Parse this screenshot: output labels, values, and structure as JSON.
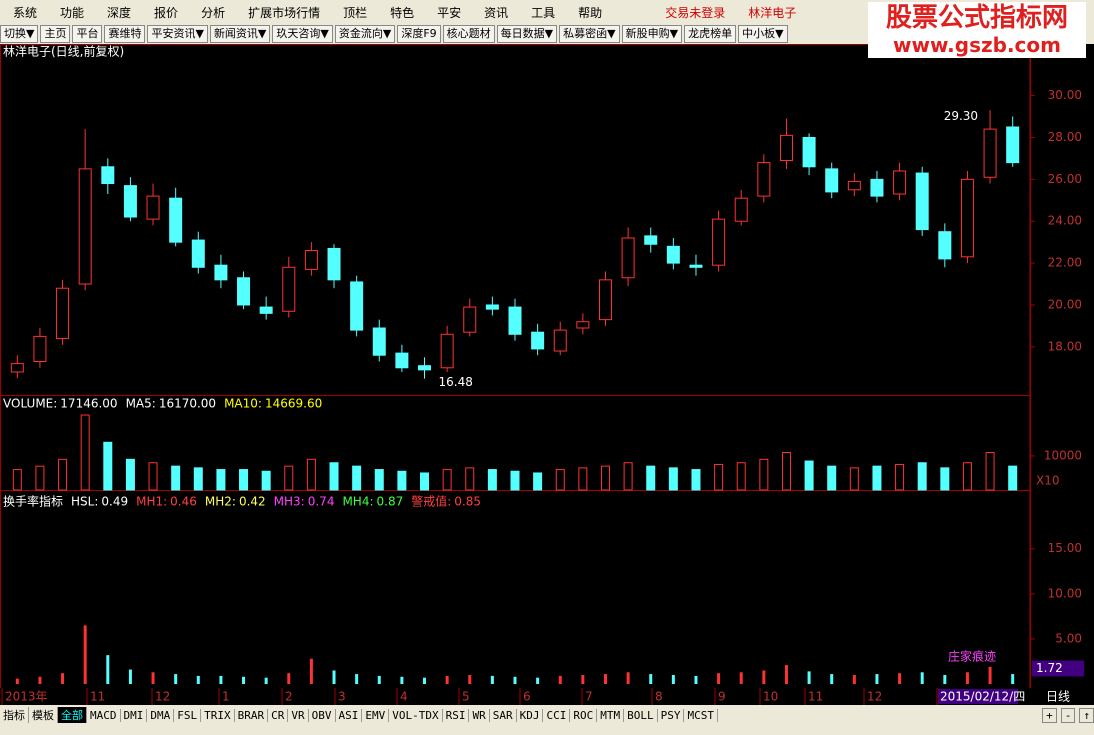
{
  "menu": [
    "系统",
    "功能",
    "深度",
    "报价",
    "分析",
    "扩展市场行情",
    "顶栏",
    "特色",
    "平安",
    "资讯",
    "工具",
    "帮助"
  ],
  "status": [
    "交易未登录",
    "林洋电子"
  ],
  "watermark": {
    "title": "股票公式指标网",
    "url": "www.gszb.com"
  },
  "toolbar": [
    "切换▼",
    "主页",
    "平台",
    "赛维特",
    "平安资讯▼",
    "新闻资讯▼",
    "玖天咨询▼",
    "资金流向▼",
    "深度F9",
    "核心题材",
    "每日数据▼",
    "私募密函▼",
    "新股申购▼",
    "龙虎榜单",
    "中小板▼"
  ],
  "chart_data": {
    "type": "candlestick",
    "title": "林洋电子(日线,前复权)",
    "ylim": [
      15.7,
      31.7
    ],
    "yticks": [
      {
        "value": 18,
        "label": "18.00"
      },
      {
        "value": 20,
        "label": "20.00"
      },
      {
        "value": 22,
        "label": "22.00"
      },
      {
        "value": 24,
        "label": "24.00"
      },
      {
        "value": 26,
        "label": "26.00"
      },
      {
        "value": 28,
        "label": "28.00"
      },
      {
        "value": 30,
        "label": "30.00"
      }
    ],
    "open": [
      16.8,
      17.3,
      18.4,
      21.0,
      26.6,
      25.7,
      24.1,
      25.1,
      23.1,
      21.9,
      21.3,
      19.9,
      19.7,
      21.7,
      22.7,
      21.1,
      18.9,
      17.7,
      17.1,
      17.0,
      18.7,
      20.0,
      19.9,
      18.7,
      17.8,
      18.9,
      19.3,
      21.3,
      23.3,
      22.8,
      21.9,
      21.9,
      24.0,
      25.2,
      26.9,
      28.0,
      26.5,
      25.5,
      26.0,
      25.3,
      26.3,
      23.5,
      22.3,
      26.1,
      28.5
    ],
    "close": [
      17.2,
      18.5,
      20.8,
      26.5,
      25.8,
      24.2,
      25.2,
      23.0,
      21.8,
      21.2,
      20.0,
      19.6,
      21.8,
      22.6,
      21.2,
      18.8,
      17.6,
      17.0,
      16.9,
      18.6,
      19.9,
      19.8,
      18.6,
      17.9,
      18.8,
      19.2,
      21.2,
      23.2,
      22.9,
      22.0,
      21.8,
      24.1,
      25.1,
      26.8,
      28.1,
      26.6,
      25.4,
      25.9,
      25.2,
      26.4,
      23.6,
      22.2,
      26.0,
      28.4,
      26.8
    ],
    "high": [
      17.6,
      18.9,
      21.2,
      28.4,
      27.0,
      26.1,
      25.8,
      25.6,
      23.5,
      22.4,
      21.6,
      20.4,
      22.3,
      23.0,
      22.9,
      21.4,
      19.3,
      18.1,
      17.5,
      19.0,
      20.3,
      20.4,
      20.3,
      19.1,
      19.2,
      19.6,
      21.6,
      23.7,
      23.7,
      23.2,
      22.4,
      24.5,
      25.5,
      27.2,
      28.9,
      28.2,
      26.8,
      26.3,
      26.4,
      26.8,
      26.6,
      23.9,
      26.4,
      29.3,
      29.0
    ],
    "low": [
      16.5,
      17.0,
      18.1,
      20.7,
      25.3,
      24.0,
      23.8,
      22.8,
      21.5,
      20.8,
      19.8,
      19.3,
      19.4,
      21.4,
      20.8,
      18.5,
      17.3,
      16.8,
      16.48,
      16.8,
      18.5,
      19.5,
      18.3,
      17.6,
      17.6,
      18.6,
      19.0,
      20.9,
      22.5,
      21.7,
      21.4,
      21.6,
      23.8,
      24.9,
      26.5,
      26.2,
      25.1,
      25.2,
      24.9,
      25.0,
      23.3,
      21.8,
      22.0,
      25.8,
      26.6
    ],
    "up_color": "#ff3232",
    "down_color": "#54ffff",
    "max_label": {
      "value": 29.3,
      "label": "29.30"
    },
    "min_label": {
      "value": 16.48,
      "label": "16.48"
    },
    "volume": {
      "legend": [
        {
          "name": "VOLUME:",
          "text": "17146.00",
          "color": "#ffffff"
        },
        {
          "name": "MA5:",
          "text": "16170.00",
          "color": "#ffffff"
        },
        {
          "name": "MA10:",
          "text": "14669.60",
          "color": "#ffff00"
        }
      ],
      "ylim": [
        0,
        27000
      ],
      "yticks": [
        10000
      ],
      "unit": "X10",
      "values": [
        6000,
        7000,
        9000,
        22000,
        14000,
        9000,
        8000,
        7000,
        6500,
        6000,
        6000,
        5500,
        7000,
        9000,
        8000,
        7000,
        6000,
        5500,
        5000,
        6000,
        6500,
        6000,
        5500,
        5000,
        6000,
        6500,
        7000,
        8000,
        7000,
        6500,
        6000,
        7500,
        8000,
        9000,
        11000,
        8500,
        7000,
        6500,
        7000,
        7500,
        8000,
        6500,
        8000,
        11000,
        7000
      ]
    },
    "hsl": {
      "legend": [
        {
          "name": "换手率指标",
          "text": "",
          "color": "#ffffff"
        },
        {
          "name": "HSL:",
          "text": "0.49",
          "color": "#ffffff"
        },
        {
          "name": "MH1:",
          "text": "0.46",
          "color": "#ff4040"
        },
        {
          "name": "MH2:",
          "text": "0.42",
          "color": "#ffff60"
        },
        {
          "name": "MH3:",
          "text": "0.74",
          "color": "#ff40ff"
        },
        {
          "name": "MH4:",
          "text": "0.87",
          "color": "#40ff40"
        },
        {
          "name": "警戒值:",
          "text": "0.85",
          "color": "#ff4040"
        }
      ],
      "ylim": [
        0,
        20.4
      ],
      "yticks": [
        {
          "value": 5,
          "label": "5.00"
        },
        {
          "value": 10,
          "label": "10.00"
        },
        {
          "value": 15,
          "label": "15.00"
        }
      ],
      "values": [
        0.6,
        0.8,
        1.2,
        6.5,
        3.2,
        1.6,
        1.3,
        1.1,
        0.9,
        0.9,
        0.8,
        0.7,
        1.2,
        2.8,
        1.5,
        1.1,
        0.9,
        0.8,
        0.7,
        0.9,
        1.0,
        0.9,
        0.8,
        0.7,
        0.9,
        1.0,
        1.1,
        1.3,
        1.1,
        1.0,
        0.9,
        1.2,
        1.3,
        1.5,
        2.1,
        1.4,
        1.1,
        1.0,
        1.1,
        1.2,
        1.3,
        1.0,
        1.3,
        1.9,
        1.1
      ],
      "current": {
        "value": 1.72,
        "label": "1.72"
      },
      "note": "庄家痕迹"
    },
    "dates": [
      "2013年",
      "11",
      "12",
      "1",
      "2",
      "3",
      "4",
      "5",
      "6",
      "7",
      "8",
      "9",
      "10",
      "11",
      "12",
      "2015/02/12/四"
    ],
    "period": "日线"
  },
  "tabs": [
    "指标",
    "模板",
    "全部",
    "MACD",
    "DMI",
    "DMA",
    "FSL",
    "TRIX",
    "BRAR",
    "CR",
    "VR",
    "OBV",
    "ASI",
    "EMV",
    "VOL-TDX",
    "RSI",
    "WR",
    "SAR",
    "KDJ",
    "CCI",
    "ROC",
    "MTM",
    "BOLL",
    "PSY",
    "MCST"
  ],
  "controls": [
    "+",
    "-",
    "↑"
  ]
}
